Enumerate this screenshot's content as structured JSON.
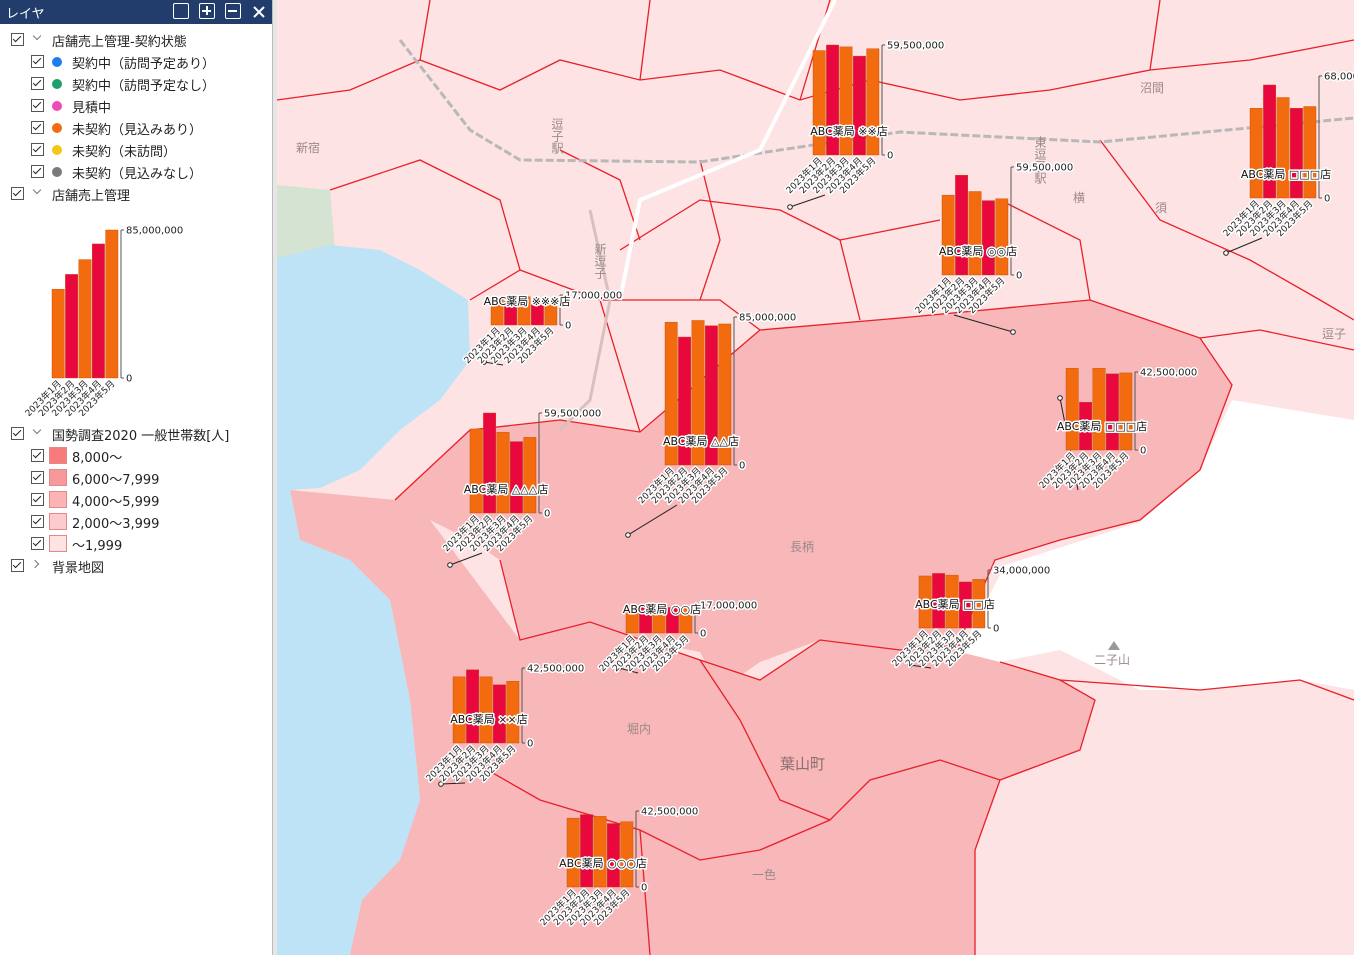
{
  "panel": {
    "title": "レイヤ",
    "groups": [
      {
        "name": "店舗売上管理-契約状態",
        "items": [
          {
            "label": "契約中（訪問予定あり）",
            "color": "#1e7ef0"
          },
          {
            "label": "契約中（訪問予定なし）",
            "color": "#1f9e6e"
          },
          {
            "label": "見積中",
            "color": "#f04ab4"
          },
          {
            "label": "未契約（見込みあり）",
            "color": "#f26b0f"
          },
          {
            "label": "未契約（未訪問）",
            "color": "#f5c518"
          },
          {
            "label": "未契約（見込みなし）",
            "color": "#7a7a7a"
          }
        ]
      },
      {
        "name": "店舗売上管理",
        "legend_chart": {
          "categories": [
            "2023年1月",
            "2023年2月",
            "2023年3月",
            "2023年4月",
            "2023年5月"
          ],
          "values": [
            51000000,
            59500000,
            68000000,
            77000000,
            85000000
          ],
          "ylim": [
            0,
            85000000
          ],
          "yticks": [
            0,
            {
              "value": 85000000,
              "label": "85,000,000"
            }
          ]
        }
      },
      {
        "name": "国勢調査2020 一般世帯数[人]",
        "items": [
          {
            "label": "8,000〜",
            "color": "#f77b7d"
          },
          {
            "label": "6,000〜7,999",
            "color": "#f99899"
          },
          {
            "label": "4,000〜5,999",
            "color": "#fbb3b4"
          },
          {
            "label": "2,000〜3,999",
            "color": "#fccbcc"
          },
          {
            "label": "〜1,999",
            "color": "#fde4e4"
          }
        ]
      },
      {
        "name": "背景地図"
      }
    ]
  },
  "map": {
    "bar_colors": [
      "#f26b0f",
      "#e8083e"
    ],
    "place_names": [
      "新宿",
      "逗子駅",
      "新逗子",
      "長柄",
      "堀内",
      "葉山町",
      "一色",
      "二子山",
      "逗子",
      "沼間",
      "東逗子駅",
      "横",
      "須"
    ],
    "charts": [
      {
        "name": "ABC薬局 ※※店",
        "categories": [
          "2023年1月",
          "2023年2月",
          "2023年3月",
          "2023年4月",
          "2023年5月"
        ],
        "values": [
          56500000,
          59500000,
          58500000,
          53500000,
          57500000
        ],
        "ylim": [
          0,
          59500000
        ],
        "yticks": [
          0,
          {
            "value": 59500000,
            "label": "59,500,000"
          }
        ]
      },
      {
        "name": "ABC薬局 □□□店",
        "categories": [
          "2023年1月",
          "2023年2月",
          "2023年3月",
          "2023年4月",
          "2023年5月"
        ],
        "values": [
          50000000,
          63000000,
          56000000,
          50000000,
          51000000
        ],
        "ylim": [
          0,
          68000000
        ],
        "yticks": [
          0,
          {
            "value": 68000000,
            "label": "68,000,000"
          }
        ]
      },
      {
        "name": "ABC薬局 ◎◎店",
        "categories": [
          "2023年1月",
          "2023年2月",
          "2023年3月",
          "2023年4月",
          "2023年5月"
        ],
        "values": [
          44000000,
          55000000,
          46000000,
          41000000,
          42000000
        ],
        "ylim": [
          0,
          59500000
        ],
        "yticks": [
          0,
          {
            "value": 59500000,
            "label": "59,500,000"
          }
        ]
      },
      {
        "name": "ABC薬局 ※※※店",
        "categories": [
          "2023年1月",
          "2023年2月",
          "2023年3月",
          "2023年4月",
          "2023年5月"
        ],
        "values": [
          15000000,
          13500000,
          16000000,
          11500000,
          11500000
        ],
        "ylim": [
          0,
          17000000
        ],
        "yticks": [
          0,
          {
            "value": 17000000,
            "label": "17,000,000"
          }
        ]
      },
      {
        "name": "ABC薬局 △△店",
        "categories": [
          "2023年1月",
          "2023年2月",
          "2023年3月",
          "2023年4月",
          "2023年5月"
        ],
        "values": [
          82000000,
          73500000,
          83000000,
          80000000,
          81000000
        ],
        "ylim": [
          0,
          85000000
        ],
        "yticks": [
          0,
          {
            "value": 85000000,
            "label": "85,000,000"
          }
        ]
      },
      {
        "name": "ABC薬局 △△△店",
        "categories": [
          "2023年1月",
          "2023年2月",
          "2023年3月",
          "2023年4月",
          "2023年5月"
        ],
        "values": [
          50000000,
          59500000,
          48000000,
          42500000,
          45000000
        ],
        "ylim": [
          0,
          59500000
        ],
        "yticks": [
          0,
          {
            "value": 59500000,
            "label": "59,500,000"
          }
        ]
      },
      {
        "name": "ABC薬局 □□□店",
        "categories": [
          "2023年1月",
          "2023年2月",
          "2023年3月",
          "2023年4月",
          "2023年5月"
        ],
        "values": [
          44500000,
          26000000,
          44500000,
          41500000,
          42000000
        ],
        "ylim": [
          0,
          42500000
        ],
        "yticks": [
          0,
          {
            "value": 42500000,
            "label": "42,500,000"
          }
        ]
      },
      {
        "name": "ABC薬局 □□店",
        "categories": [
          "2023年1月",
          "2023年2月",
          "2023年3月",
          "2023年4月",
          "2023年5月"
        ],
        "values": [
          30500000,
          32000000,
          31000000,
          27000000,
          28500000
        ],
        "ylim": [
          0,
          34000000
        ],
        "yticks": [
          0,
          {
            "value": 34000000,
            "label": "34,000,000"
          }
        ]
      },
      {
        "name": "ABC薬局 ○○店",
        "categories": [
          "2023年1月",
          "2023年2月",
          "2023年3月",
          "2023年4月",
          "2023年5月"
        ],
        "values": [
          15500000,
          16500000,
          15500000,
          15500000,
          15500000
        ],
        "ylim": [
          0,
          17000000
        ],
        "yticks": [
          0,
          {
            "value": 17000000,
            "label": "17,000,000"
          }
        ]
      },
      {
        "name": "ABC薬局 ××店",
        "categories": [
          "2023年1月",
          "2023年2月",
          "2023年3月",
          "2023年4月",
          "2023年5月"
        ],
        "values": [
          37500000,
          41500000,
          37500000,
          33000000,
          35000000
        ],
        "ylim": [
          0,
          42500000
        ],
        "yticks": [
          0,
          {
            "value": 42500000,
            "label": "42,500,000"
          }
        ]
      },
      {
        "name": "ABC薬局 ○○○店",
        "categories": [
          "2023年1月",
          "2023年2月",
          "2023年3月",
          "2023年4月",
          "2023年5月"
        ],
        "values": [
          38500000,
          40500000,
          39500000,
          35500000,
          36500000
        ],
        "ylim": [
          0,
          42500000
        ],
        "yticks": [
          0,
          {
            "value": 42500000,
            "label": "42,500,000"
          }
        ]
      }
    ]
  }
}
